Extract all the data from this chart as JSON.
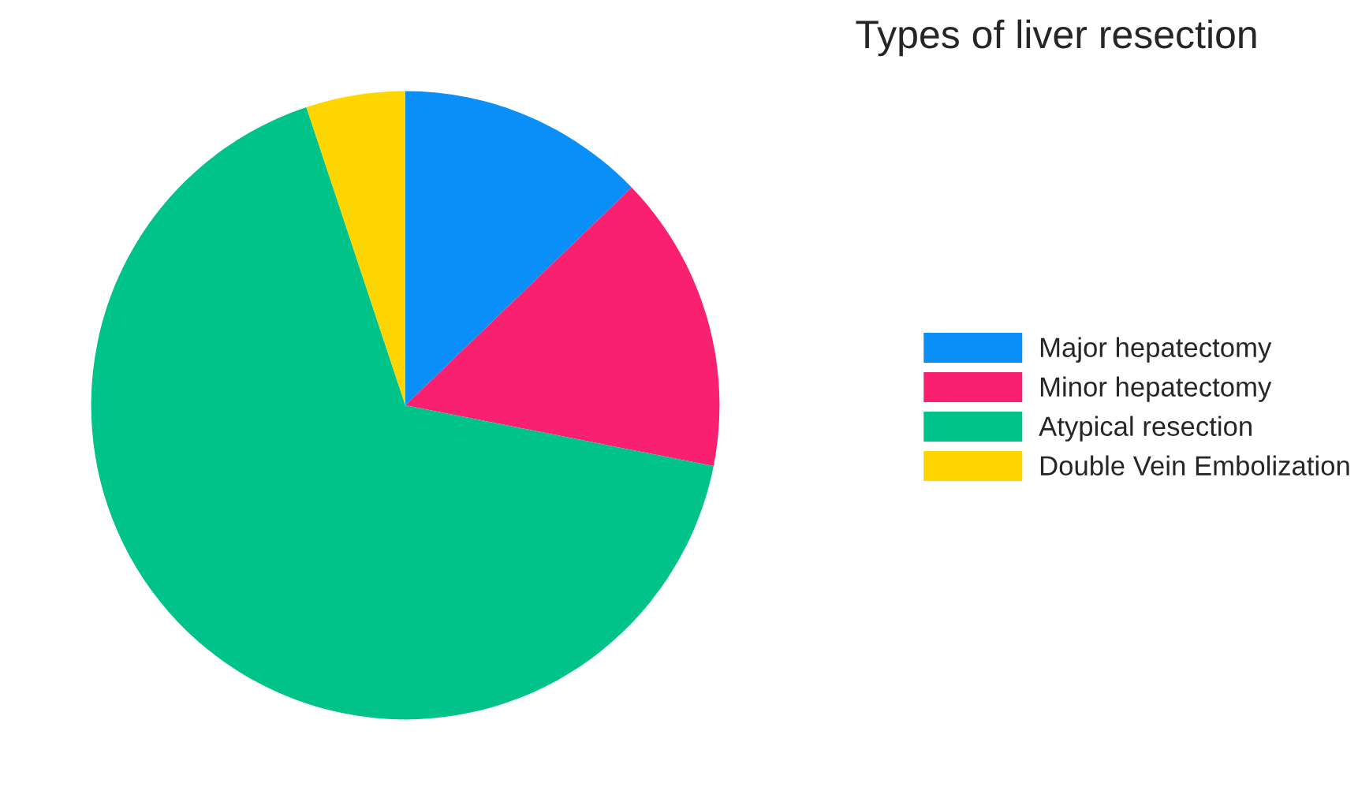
{
  "chart_data": {
    "type": "pie",
    "title": "Types of liver resection",
    "categories": [
      "Major hepatectomy",
      "Minor hepatectomy",
      "Atypical resection",
      "Double Vein Embolization"
    ],
    "values": [
      12.8,
      15.3,
      66.8,
      5.1
    ],
    "colors": [
      "#0a8ff8",
      "#f92070",
      "#00c389",
      "#ffd500"
    ],
    "legend": "right"
  }
}
